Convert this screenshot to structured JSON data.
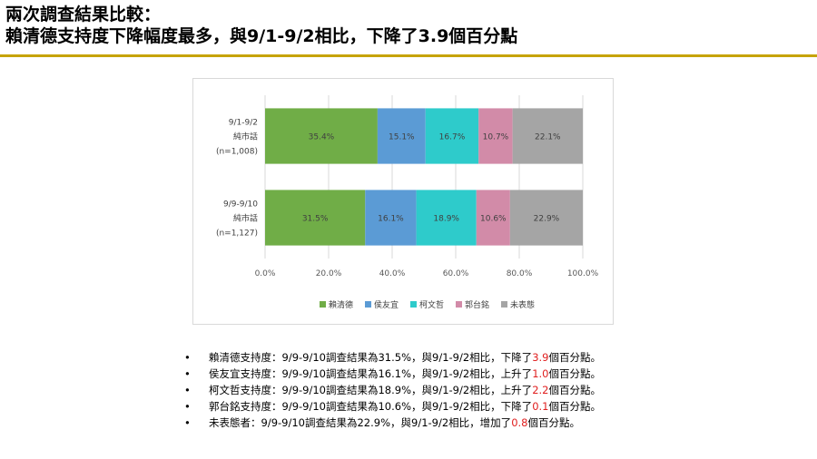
{
  "title": {
    "line1": "兩次調查結果比較：",
    "line2": "賴清德支持度下降幅度最多，與9/1-9/2相比，下降了3.9個百分點"
  },
  "colors": {
    "accent_rule": "#c6a300",
    "highlight": "#e02020"
  },
  "chart_data": {
    "type": "bar",
    "orientation": "horizontal",
    "stacked": true,
    "categories": [
      {
        "lines": [
          "9/1-9/2",
          "純市話",
          "(n=1,008)"
        ]
      },
      {
        "lines": [
          "9/9-9/10",
          "純市話",
          "(n=1,127)"
        ]
      }
    ],
    "series": [
      {
        "name": "賴清德",
        "color": "#70ad47",
        "values": [
          35.4,
          31.5
        ],
        "labels": [
          "35.4%",
          "31.5%"
        ]
      },
      {
        "name": "侯友宜",
        "color": "#5b9bd5",
        "values": [
          15.1,
          16.1
        ],
        "labels": [
          "15.1%",
          "16.1%"
        ]
      },
      {
        "name": "柯文哲",
        "color": "#2ecbcb",
        "values": [
          16.7,
          18.9
        ],
        "labels": [
          "16.7%",
          "18.9%"
        ]
      },
      {
        "name": "郭台銘",
        "color": "#d28ba8",
        "values": [
          10.7,
          10.6
        ],
        "labels": [
          "10.7%",
          "10.6%"
        ]
      },
      {
        "name": "未表態",
        "color": "#a5a5a5",
        "values": [
          22.1,
          22.9
        ],
        "labels": [
          "22.1%",
          "22.9%"
        ]
      }
    ],
    "xlim": [
      0,
      100
    ],
    "xticks": [
      "0.0%",
      "20.0%",
      "40.0%",
      "60.0%",
      "80.0%",
      "100.0%"
    ],
    "grid": true,
    "legend_position": "bottom"
  },
  "bullets": [
    {
      "label": "賴清德支持度：",
      "text": "9/9-9/10調查結果為31.5%，與9/1-9/2相比，下降了",
      "value": "3.9",
      "suffix": "個百分點。"
    },
    {
      "label": "侯友宜支持度：",
      "text": " 9/9-9/10調查結果為16.1%，與9/1-9/2相比，上升了",
      "value": "1.0",
      "suffix": "個百分點。"
    },
    {
      "label": "柯文哲支持度：",
      "text": " 9/9-9/10調查結果為18.9%，與9/1-9/2相比，上升了",
      "value": "2.2",
      "suffix": "個百分點。"
    },
    {
      "label": "郭台銘支持度：",
      "text": " 9/9-9/10調查結果為10.6%，與9/1-9/2相比，下降了",
      "value": "0.1",
      "suffix": "個百分點。"
    },
    {
      "label": "未表態者：",
      "text": " 9/9-9/10調查結果為22.9%，與9/1-9/2相比，增加了",
      "value": "0.8",
      "suffix": "個百分點。"
    }
  ]
}
